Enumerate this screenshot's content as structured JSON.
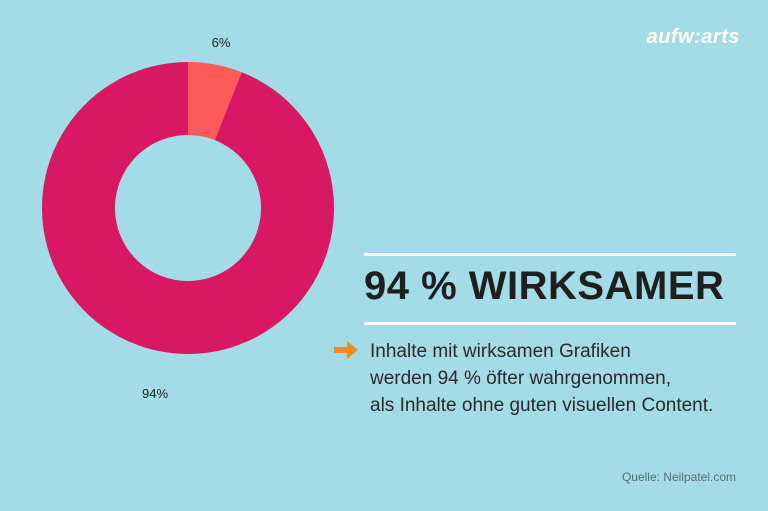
{
  "brand": {
    "logo": "aufw:arts"
  },
  "headline": "94 % WIRKSAMER",
  "body_lines": [
    "Inhalte mit wirksamen Grafiken",
    "werden 94 % öfter wahrgenommen,",
    "als Inhalte ohne guten visuellen Content."
  ],
  "source": "Quelle: Neilpatel.com",
  "icons": {
    "bullet": "arrow-right-icon"
  },
  "colors": {
    "background": "#a3dbe6",
    "slice_main": "#d81862",
    "slice_small": "#fd5a59",
    "arrow": "#f08a24"
  },
  "chart_data": {
    "type": "pie",
    "donut": true,
    "slices": [
      {
        "value": 6,
        "label": "6%",
        "color": "#fd5a59"
      },
      {
        "value": 94,
        "label": "94%",
        "color": "#d81862"
      }
    ]
  }
}
